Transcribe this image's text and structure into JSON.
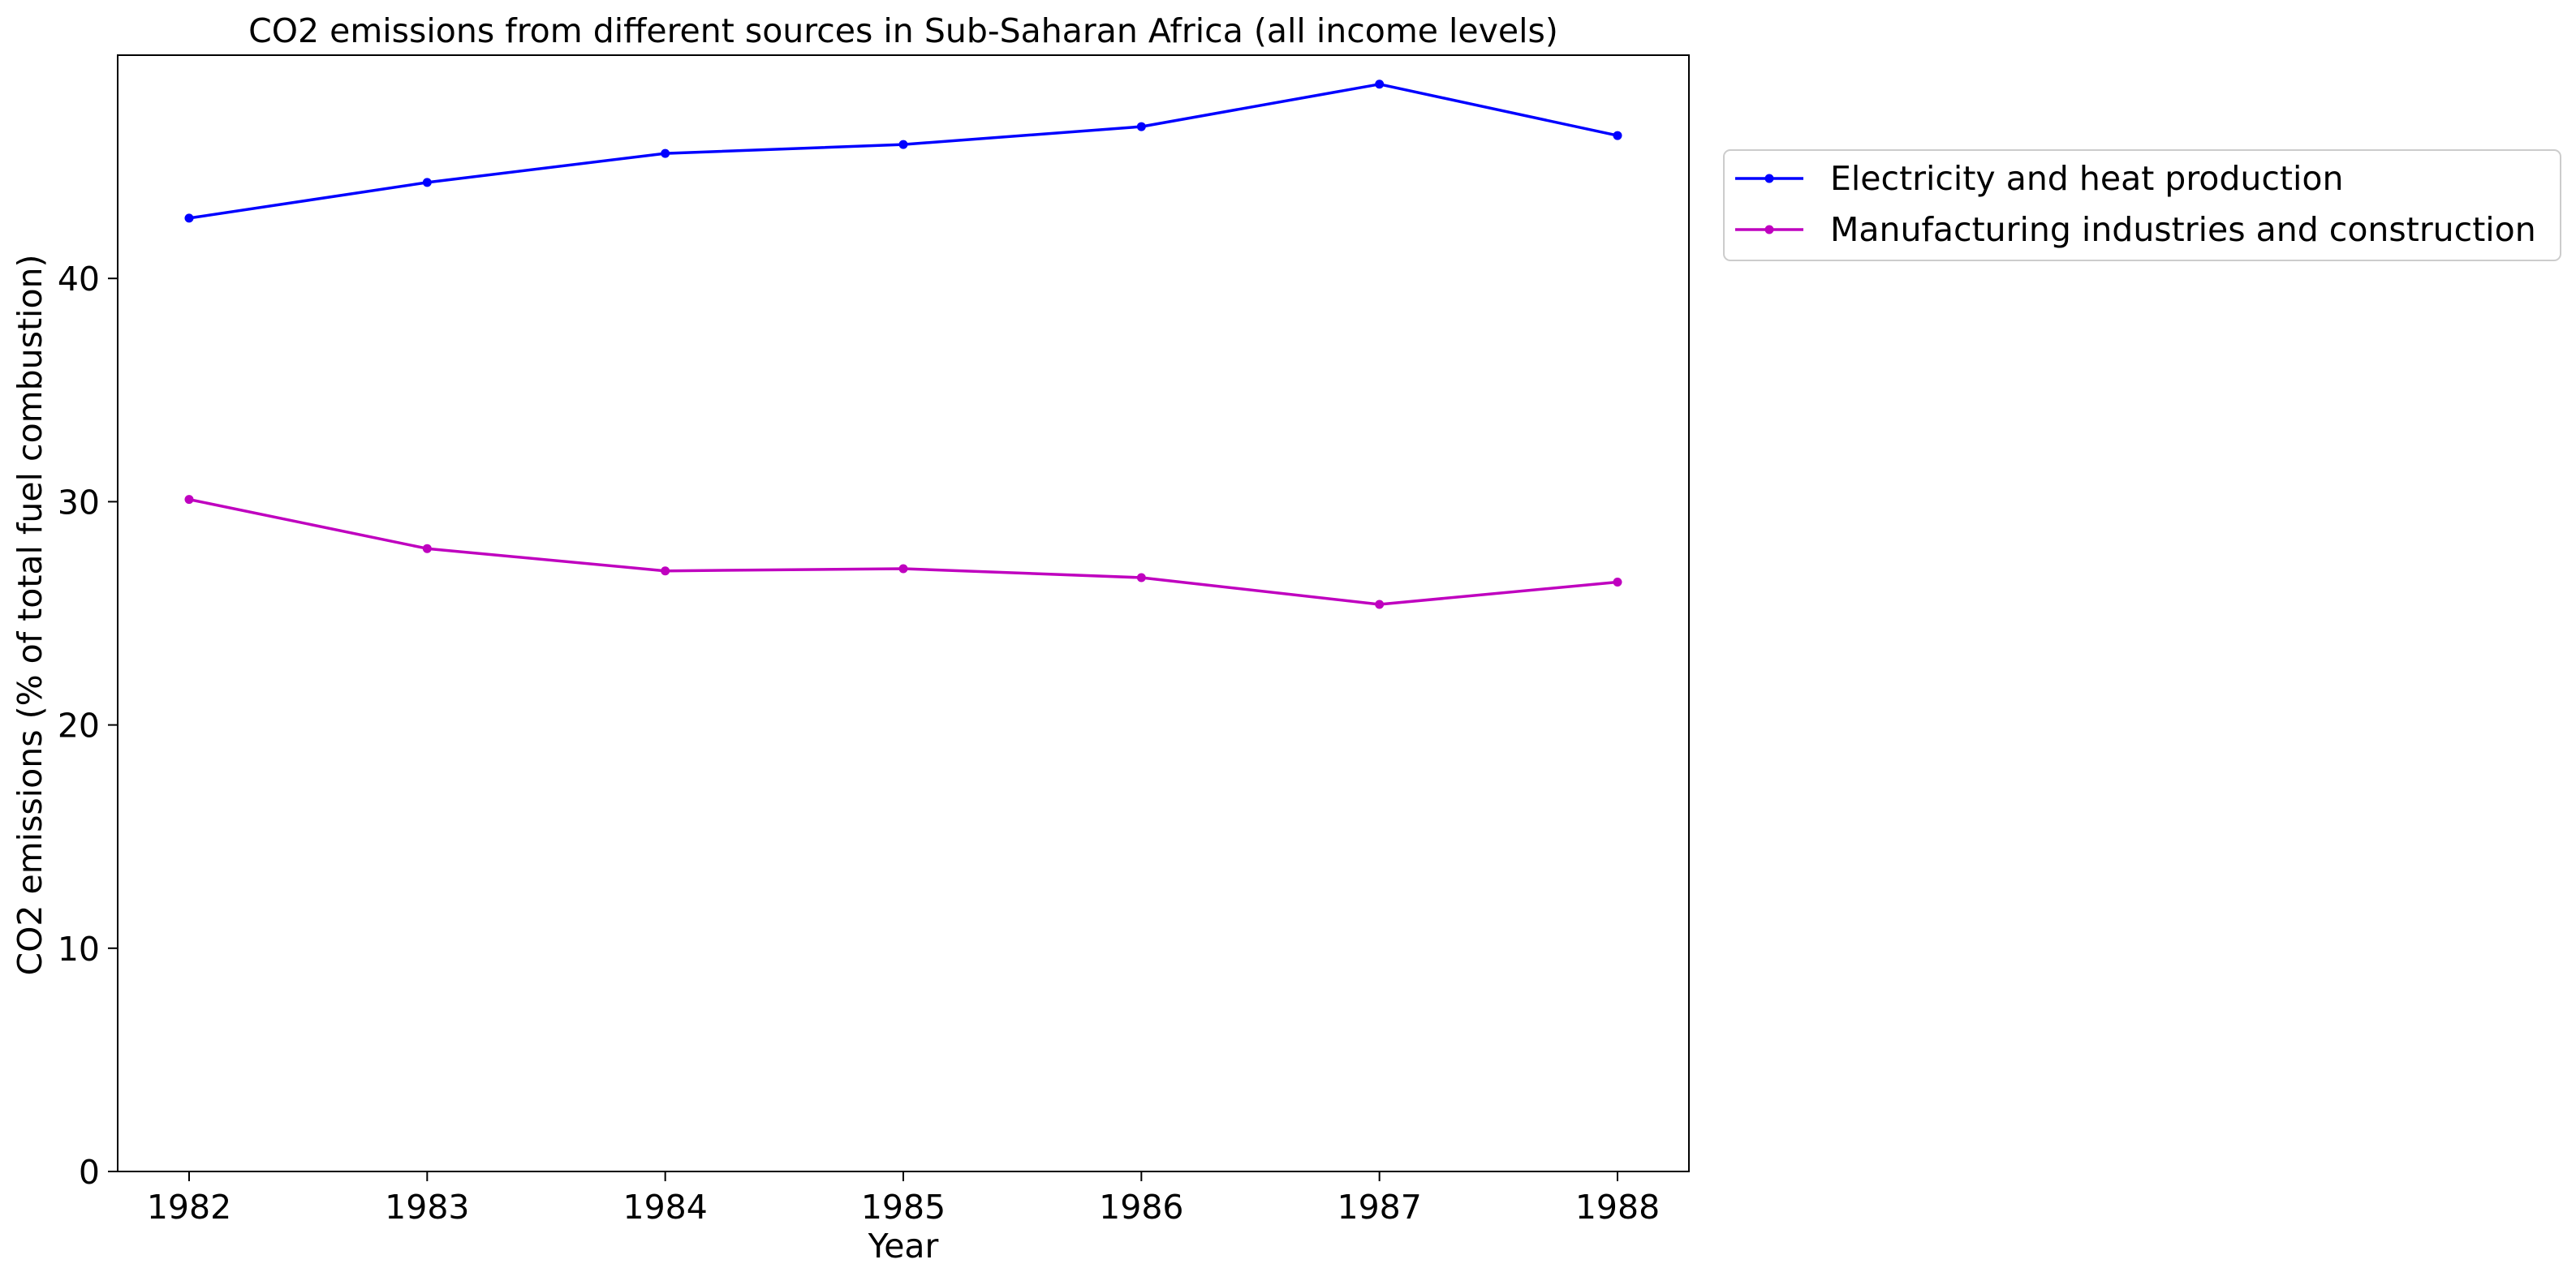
{
  "chart_data": {
    "type": "line",
    "title": "CO2 emissions from different sources in Sub-Saharan Africa (all income levels)",
    "xlabel": "Year",
    "ylabel": "CO2 emissions (% of total fuel combustion)",
    "x": [
      "1982",
      "1983",
      "1984",
      "1985",
      "1986",
      "1987",
      "1988"
    ],
    "xlim": [
      1981.7,
      1988.3
    ],
    "ylim": [
      0,
      50
    ],
    "yticks": [
      0,
      10,
      20,
      30,
      40
    ],
    "grid": false,
    "legend_position": "outside-right-top",
    "series": [
      {
        "name": "Electricity and heat production",
        "color": "#0000ff",
        "marker": "circle",
        "values": [
          42.7,
          44.3,
          45.6,
          46.0,
          46.8,
          48.7,
          46.4
        ]
      },
      {
        "name": "Manufacturing industries and construction",
        "color": "#bf00bf",
        "marker": "circle",
        "values": [
          30.1,
          27.9,
          26.9,
          27.0,
          26.6,
          25.4,
          26.4
        ]
      }
    ]
  }
}
